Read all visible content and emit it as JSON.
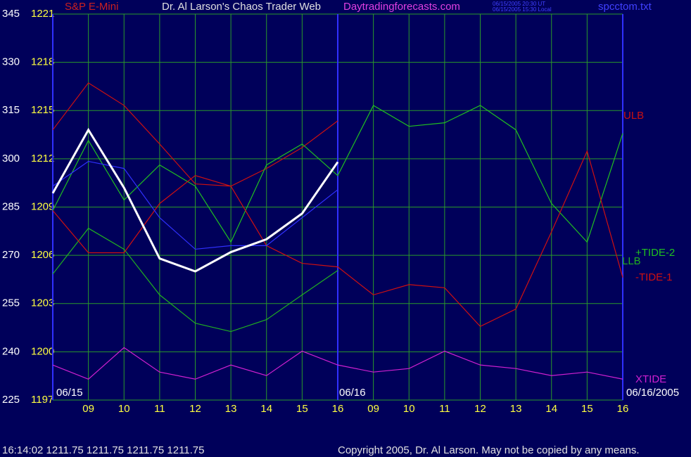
{
  "header": {
    "symbol": "S&P E-Mini",
    "title": "Dr. Al Larson's Chaos Trader Web",
    "site": "Daytradingforecasts.com",
    "time_ut": "06/15/2005 20:30 UT",
    "time_local": "06/15/2005 15:30 Local",
    "file": "spcctom.txt"
  },
  "chart_data": {
    "type": "line",
    "x": [
      0,
      1,
      2,
      3,
      4,
      5,
      6,
      7,
      8,
      9,
      10,
      11,
      12,
      13,
      14,
      15,
      16
    ],
    "xlim": [
      0,
      16
    ],
    "xticks": [
      {
        "value": 1,
        "label": "09"
      },
      {
        "value": 2,
        "label": "10"
      },
      {
        "value": 3,
        "label": "11"
      },
      {
        "value": 4,
        "label": "12"
      },
      {
        "value": 5,
        "label": "13"
      },
      {
        "value": 6,
        "label": "14"
      },
      {
        "value": 7,
        "label": "15"
      },
      {
        "value": 8,
        "label": "16"
      },
      {
        "value": 9,
        "label": "09"
      },
      {
        "value": 10,
        "label": "10"
      },
      {
        "value": 11,
        "label": "11"
      },
      {
        "value": 12,
        "label": "12"
      },
      {
        "value": 13,
        "label": "13"
      },
      {
        "value": 14,
        "label": "14"
      },
      {
        "value": 15,
        "label": "15"
      },
      {
        "value": 16,
        "label": "16"
      }
    ],
    "ylim": [
      225,
      345
    ],
    "yticks": [
      225,
      240,
      255,
      270,
      285,
      300,
      315,
      330,
      345
    ],
    "y2lim": [
      1197,
      1221
    ],
    "y2ticks": [
      1197,
      1200,
      1203,
      1206,
      1209,
      1212,
      1215,
      1218,
      1221
    ],
    "grid": true,
    "date_labels": [
      "06/15",
      "06/16",
      "06/16/2005"
    ],
    "series": [
      {
        "name": "ULB",
        "color": "#cc1010",
        "values": [
          309.0,
          323.6,
          316.6,
          304.6,
          292.2,
          291.5,
          297.0,
          303.5,
          311.8,
          null,
          null,
          null,
          null,
          null,
          null,
          null,
          null
        ]
      },
      {
        "name": "LLB",
        "color": "#20b020",
        "values": [
          264.2,
          278.4,
          271.9,
          257.7,
          248.9,
          246.3,
          250.0,
          257.7,
          265.3,
          null,
          null,
          null,
          null,
          null,
          null,
          null,
          null
        ]
      },
      {
        "name": "+TIDE-2",
        "color": "#20c020",
        "values": [
          283.9,
          305.7,
          287.2,
          298.1,
          291.5,
          274.1,
          298.1,
          304.6,
          294.8,
          316.6,
          310.1,
          311.2,
          316.6,
          309.0,
          286.1,
          274.1,
          307.9
        ]
      },
      {
        "name": "-TIDE-1",
        "color": "#d01010",
        "values": [
          283.9,
          270.8,
          270.8,
          286.1,
          294.8,
          291.5,
          273.0,
          267.5,
          266.4,
          257.7,
          260.9,
          259.9,
          247.9,
          253.3,
          277.3,
          302.4,
          263.1
        ]
      },
      {
        "name": "XTIDE",
        "color": "#d020d0",
        "values": [
          235.9,
          231.5,
          241.3,
          233.7,
          231.5,
          235.9,
          232.6,
          240.2,
          235.9,
          233.7,
          234.8,
          240.2,
          235.9,
          234.8,
          232.6,
          233.7,
          231.5
        ]
      },
      {
        "color": "#3030ff",
        "values": [
          291.5,
          299.2,
          297.0,
          281.7,
          271.9,
          273.0,
          273.0,
          281.7,
          290.4,
          null,
          null,
          null,
          null,
          null,
          null,
          null,
          null
        ]
      },
      {
        "color": "#ffffff",
        "values": [
          289.3,
          309.0,
          291.0,
          269.0,
          265.0,
          271.0,
          275.0,
          283.0,
          299.0,
          null,
          null,
          null,
          null,
          null,
          null,
          null,
          null
        ]
      }
    ]
  },
  "footer": {
    "status": "16:14:02  1211.75 1211.75 1211.75 1211.75",
    "copyright": "Copyright 2005, Dr. Al Larson. May not be copied by any means."
  }
}
